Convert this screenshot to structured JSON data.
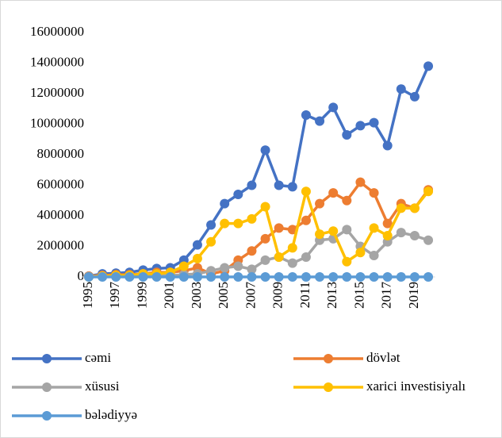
{
  "chart_data": {
    "type": "line",
    "categories": [
      "1995",
      null,
      "1997",
      null,
      "1999",
      null,
      "2001",
      null,
      "2003",
      null,
      "2005",
      null,
      "2007",
      null,
      "2009",
      null,
      "2011",
      null,
      "2013",
      null,
      "2015",
      null,
      "2017",
      null,
      "2019",
      null
    ],
    "ylim": [
      0,
      16000000
    ],
    "yticks": [
      0,
      2000000,
      4000000,
      6000000,
      8000000,
      10000000,
      12000000,
      14000000,
      16000000
    ],
    "grid": false,
    "legend": "bottom",
    "series": [
      {
        "name": "cəmi",
        "color": "#4472c4",
        "values": [
          50000,
          200000,
          250000,
          300000,
          450000,
          550000,
          600000,
          1100000,
          2100000,
          3400000,
          4800000,
          5400000,
          6000000,
          8300000,
          6000000,
          5900000,
          10600000,
          10200000,
          11100000,
          9300000,
          9900000,
          10100000,
          8600000,
          12300000,
          11800000,
          13800000
        ]
      },
      {
        "name": "dövlət",
        "color": "#ed7d31",
        "values": [
          50000,
          100000,
          150000,
          150000,
          200000,
          300000,
          300000,
          400000,
          600000,
          200000,
          400000,
          1100000,
          1700000,
          2500000,
          3200000,
          3100000,
          3700000,
          4800000,
          5500000,
          5000000,
          6200000,
          5500000,
          3500000,
          4800000,
          4500000,
          5700000
        ]
      },
      {
        "name": "xüsusi",
        "color": "#a5a5a5",
        "values": [
          20000,
          50000,
          50000,
          60000,
          80000,
          100000,
          100000,
          150000,
          200000,
          400000,
          600000,
          700000,
          500000,
          1100000,
          1300000,
          900000,
          1300000,
          2400000,
          2500000,
          3100000,
          2000000,
          1400000,
          2300000,
          2900000,
          2700000,
          2400000
        ]
      },
      {
        "name": "xarici investisiyalı",
        "color": "#ffc000",
        "values": [
          0,
          50000,
          100000,
          100000,
          200000,
          200000,
          300000,
          700000,
          1200000,
          2300000,
          3500000,
          3500000,
          3800000,
          4600000,
          1300000,
          1900000,
          5600000,
          2800000,
          3000000,
          1000000,
          1600000,
          3200000,
          2700000,
          4500000,
          4500000,
          5600000
        ]
      },
      {
        "name": "bələdiyyə",
        "color": "#5b9bd5",
        "values": [
          0,
          0,
          0,
          0,
          0,
          0,
          0,
          0,
          0,
          0,
          0,
          0,
          0,
          0,
          0,
          0,
          0,
          0,
          0,
          0,
          0,
          0,
          0,
          0,
          0,
          0
        ]
      }
    ]
  }
}
